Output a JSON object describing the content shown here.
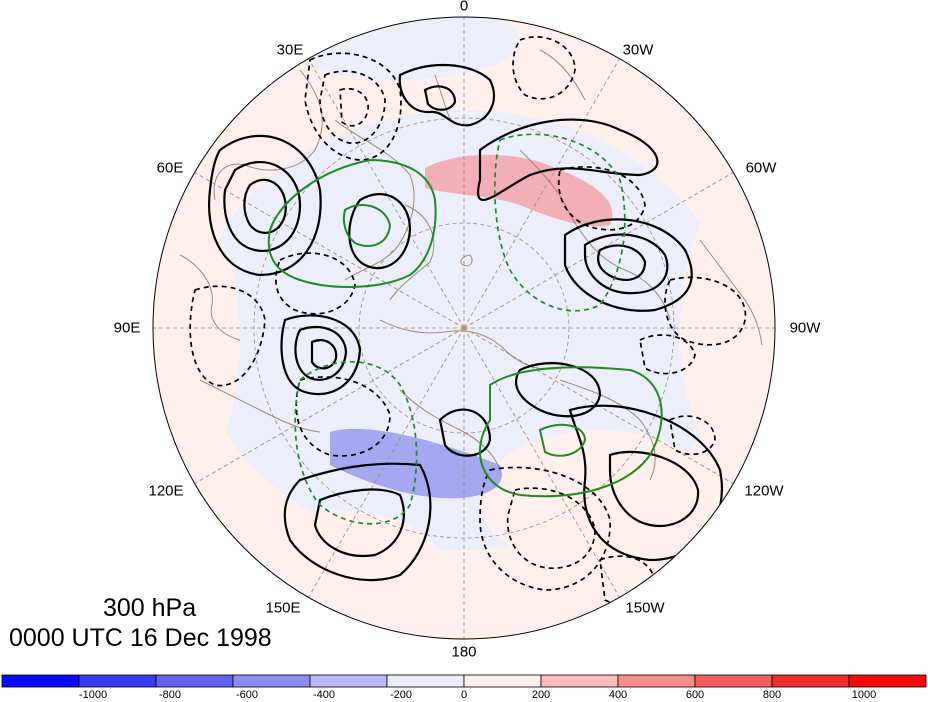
{
  "title": {
    "level": "300 hPa",
    "time": "0000 UTC 16 Dec 1998"
  },
  "longitude_labels": [
    "0",
    "30W",
    "60W",
    "90W",
    "120W",
    "150W",
    "180",
    "150E",
    "120E",
    "90E",
    "60E",
    "30E"
  ],
  "colorbar": {
    "tick_labels": [
      "-1000",
      "-800",
      "-600",
      "-400",
      "-200",
      "0",
      "200",
      "400",
      "600",
      "800",
      "1000"
    ],
    "colors": [
      "#0a0af5",
      "#3a3aef",
      "#6262ef",
      "#8c8cf2",
      "#b8b8f6",
      "#ececfc",
      "#fff0ee",
      "#fbbcbc",
      "#f78c8c",
      "#f25e5e",
      "#ef2f2f",
      "#f50a0a"
    ]
  },
  "map": {
    "projection": "north polar stereographic",
    "background_colors": {
      "pale_blue": "#eceefc",
      "pale_pink": "#fff0ee",
      "pink_shade": "#f4a3aa",
      "blue_shade": "#9ba0ee",
      "coastline": "#a08870",
      "positive_contour": "#000000",
      "negative_contour": "#000000",
      "green_contour": "#1e8c1e"
    }
  }
}
